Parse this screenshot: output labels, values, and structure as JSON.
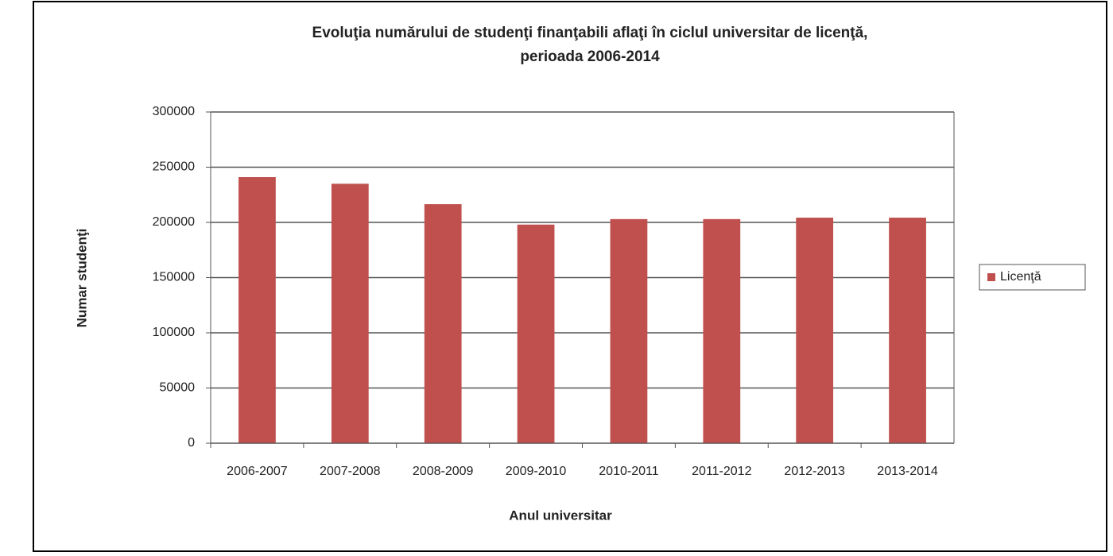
{
  "chart_data": {
    "type": "bar",
    "title": [
      "Evoluţia numărului de studenţi finanţabili aflaţi în ciclul universitar de licenţă,",
      "perioada 2006-2014"
    ],
    "x_label": "Anul universitar",
    "y_label": "Numar studenţi",
    "categories": [
      "2006-2007",
      "2007-2008",
      "2008-2009",
      "2009-2010",
      "2010-2011",
      "2011-2012",
      "2012-2013",
      "2013-2014"
    ],
    "series": [
      {
        "name": "Licenţă",
        "color": "#c0504d",
        "values": [
          241000,
          235000,
          216500,
          198000,
          203000,
          203000,
          204300,
          204300
        ]
      }
    ],
    "ylim": [
      0,
      300000
    ],
    "yticks": [
      0,
      50000,
      100000,
      150000,
      200000,
      250000,
      300000
    ],
    "grid": true,
    "legend": "right"
  }
}
